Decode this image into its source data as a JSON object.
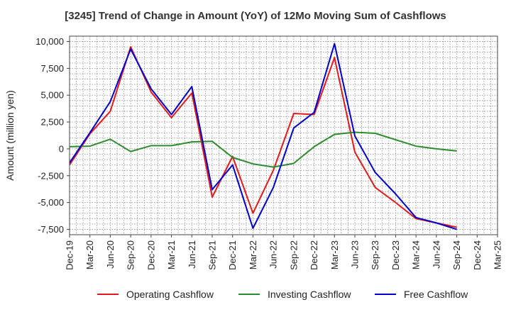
{
  "chart_data": {
    "type": "line",
    "title": "[3245]  Trend of Change in Amount (YoY) of 12Mo Moving Sum of Cashflows",
    "xlabel": "",
    "ylabel": "Amount (million yen)",
    "ylim": [
      -8000,
      10500
    ],
    "yticks": [
      10000,
      7500,
      5000,
      2500,
      0,
      -2500,
      -5000,
      -7500
    ],
    "ytick_labels": [
      "10,000",
      "7,500",
      "5,000",
      "2,500",
      "0",
      "-2,500",
      "-5,000",
      "-7,500"
    ],
    "categories": [
      "Dec-19",
      "Mar-20",
      "Jun-20",
      "Sep-20",
      "Dec-20",
      "Mar-21",
      "Jun-21",
      "Sep-21",
      "Dec-21",
      "Mar-22",
      "Jun-22",
      "Sep-22",
      "Dec-22",
      "Mar-23",
      "Jun-23",
      "Sep-23",
      "Dec-23",
      "Mar-24",
      "Jun-24",
      "Sep-24",
      "Dec-24",
      "Mar-25"
    ],
    "grid": true,
    "legend_position": "bottom",
    "series": [
      {
        "name": "Operating Cashflow",
        "color": "#e31a1c",
        "values": [
          -1500,
          1400,
          3500,
          9500,
          5300,
          2900,
          5200,
          -4500,
          -700,
          -6000,
          -2000,
          3300,
          3200,
          8500,
          -300,
          -3600,
          -5000,
          -6500,
          -6900,
          -7300,
          null,
          null
        ]
      },
      {
        "name": "Investing Cashflow",
        "color": "#2e8b2e",
        "values": [
          200,
          250,
          900,
          -250,
          300,
          300,
          650,
          700,
          -800,
          -1400,
          -1700,
          -1350,
          200,
          1350,
          1550,
          1450,
          850,
          250,
          0,
          -200,
          null,
          null
        ]
      },
      {
        "name": "Free Cashflow",
        "color": "#0000cc",
        "values": [
          -1300,
          1500,
          4400,
          9300,
          5600,
          3200,
          5800,
          -3800,
          -1500,
          -7400,
          -3600,
          1950,
          3400,
          9800,
          1200,
          -2200,
          -4200,
          -6400,
          -6900,
          -7500,
          null,
          null
        ]
      }
    ]
  }
}
